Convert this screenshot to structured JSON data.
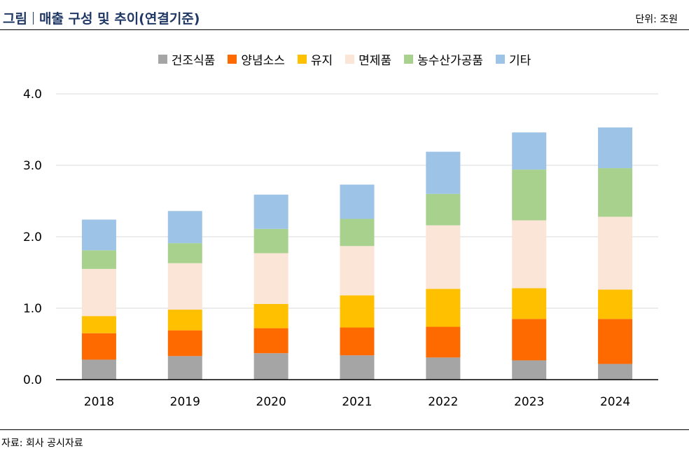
{
  "header": {
    "title_left": "그림",
    "title_main": "매출 구성 및 추이(연결기준)",
    "unit": "단위: 조원"
  },
  "footer": {
    "source": "자료: 회사 공시자료"
  },
  "chart_data": {
    "type": "bar",
    "stacked": true,
    "categories": [
      "2018",
      "2019",
      "2020",
      "2021",
      "2022",
      "2023",
      "2024"
    ],
    "ylim": [
      0,
      4
    ],
    "yticks": [
      "0.0",
      "1.0",
      "2.0",
      "3.0",
      "4.0"
    ],
    "grid": true,
    "legend_position": "top",
    "series": [
      {
        "name": "건조식품",
        "color": "#a5a5a5",
        "values": [
          0.28,
          0.33,
          0.37,
          0.34,
          0.31,
          0.27,
          0.22
        ]
      },
      {
        "name": "양념소스",
        "color": "#ff6a00",
        "values": [
          0.37,
          0.36,
          0.35,
          0.39,
          0.43,
          0.58,
          0.63
        ]
      },
      {
        "name": "유지",
        "color": "#ffc000",
        "values": [
          0.24,
          0.29,
          0.34,
          0.45,
          0.53,
          0.43,
          0.41
        ]
      },
      {
        "name": "면제품",
        "color": "#fbe5d6",
        "values": [
          0.66,
          0.65,
          0.71,
          0.69,
          0.89,
          0.95,
          1.02
        ]
      },
      {
        "name": "농수산가공품",
        "color": "#a9d18e",
        "values": [
          0.26,
          0.28,
          0.34,
          0.38,
          0.44,
          0.71,
          0.68
        ]
      },
      {
        "name": "기타",
        "color": "#9dc3e6",
        "values": [
          0.43,
          0.45,
          0.48,
          0.48,
          0.59,
          0.52,
          0.57
        ]
      }
    ]
  }
}
